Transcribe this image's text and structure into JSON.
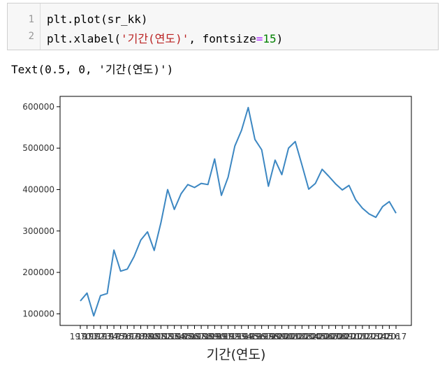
{
  "cell": {
    "line_numbers": [
      "1",
      "2"
    ],
    "line1": {
      "a": "plt.plot(sr_kk)"
    },
    "line2": {
      "a": "plt.xlabel(",
      "str": "'기간(연도)'",
      "b": ", fontsize",
      "eq": "=",
      "num": "15",
      "c": ")"
    }
  },
  "output": {
    "text": "Text(0.5, 0, '기간(연도)')"
  },
  "chart_data": {
    "type": "line",
    "xlabel": "기간(연도)",
    "ylabel": "",
    "title": "",
    "grid": false,
    "color": "#3c87c2",
    "ylim": [
      72000,
      625000
    ],
    "y_ticks": [
      100000,
      200000,
      300000,
      400000,
      500000,
      600000
    ],
    "y_tick_labels": [
      "100000",
      "200000",
      "300000",
      "400000",
      "500000",
      "600000"
    ],
    "x_tick_labels": [
      "1970",
      "1971",
      "1972",
      "1973",
      "1974",
      "1975",
      "1976",
      "1977",
      "1978",
      "1979",
      "1980",
      "1981",
      "1982",
      "1983",
      "1984",
      "1985",
      "1986",
      "1987",
      "1988",
      "1989",
      "1990",
      "1991",
      "1992",
      "1993",
      "1994",
      "1995",
      "1996",
      "1997",
      "1998",
      "1999",
      "2000",
      "2001",
      "2002",
      "2003",
      "2004",
      "2005",
      "2006",
      "2007",
      "2008",
      "2009",
      "2010",
      "2011",
      "2012",
      "2013",
      "2014",
      "2015",
      "2016",
      "2017"
    ],
    "values": [
      131000,
      150000,
      95000,
      144000,
      149000,
      254000,
      203000,
      208000,
      238000,
      278000,
      298000,
      253000,
      320000,
      400000,
      352000,
      390000,
      412000,
      405000,
      415000,
      412000,
      474000,
      386000,
      430000,
      505000,
      543000,
      598000,
      521000,
      496000,
      408000,
      471000,
      436000,
      500000,
      516000,
      459000,
      401000,
      415000,
      449000,
      432000,
      414000,
      399000,
      410000,
      375000,
      355000,
      341000,
      333000,
      359000,
      371000,
      343000
    ]
  }
}
